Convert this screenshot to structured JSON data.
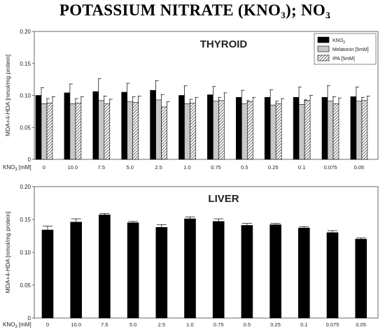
{
  "page_title": {
    "prefix": "POTASSIUM NITRATE (KNO",
    "sub1": "3",
    "mid": "); NO",
    "sup": "−",
    "sub2": "3"
  },
  "chart_data": [
    {
      "type": "bar",
      "title": "THYROID",
      "ylabel": "MDA+4-HDA [nmol/mg protein]",
      "xlabel_prefix": "KNO",
      "xlabel_sub": "3",
      "xlabel_suffix": " [mM]",
      "ylim": [
        0,
        0.2
      ],
      "yticks": [
        "0",
        "0.05",
        "0.10",
        "0.15",
        "0.20"
      ],
      "grid": false,
      "legend_position": "top-right",
      "categories": [
        "0",
        "10.0",
        "7.5",
        "5.0",
        "2.5",
        "1.0",
        "0.75",
        "0.5",
        "0.25",
        "0.1",
        "0.075",
        "0.05"
      ],
      "series": [
        {
          "name": "KNO",
          "name_sub": "3",
          "fill": "solid-black",
          "values": [
            0.1,
            0.104,
            0.106,
            0.105,
            0.108,
            0.1,
            0.101,
            0.097,
            0.097,
            0.097,
            0.097,
            0.098
          ],
          "errors": [
            0.012,
            0.014,
            0.02,
            0.014,
            0.015,
            0.015,
            0.013,
            0.011,
            0.012,
            0.016,
            0.018,
            0.015
          ]
        },
        {
          "name": "Melatonin [5mM]",
          "fill": "light-gray",
          "values": [
            0.087,
            0.087,
            0.092,
            0.09,
            0.093,
            0.087,
            0.091,
            0.087,
            0.085,
            0.086,
            0.091,
            0.091
          ],
          "errors": [
            0.008,
            0.008,
            0.007,
            0.008,
            0.008,
            0.007,
            0.006,
            0.005,
            0.006,
            0.007,
            0.007,
            0.006
          ]
        },
        {
          "name": "IPA [5mM]",
          "fill": "hatched",
          "values": [
            0.088,
            0.088,
            0.087,
            0.089,
            0.082,
            0.088,
            0.092,
            0.09,
            0.087,
            0.092,
            0.087,
            0.092
          ],
          "errors": [
            0.01,
            0.01,
            0.007,
            0.01,
            0.008,
            0.009,
            0.012,
            0.007,
            0.008,
            0.008,
            0.009,
            0.007
          ]
        }
      ]
    },
    {
      "type": "bar",
      "title": "LIVER",
      "ylabel": "MDA+4-HDA [nmol/mg protein]",
      "xlabel_prefix": "KNO",
      "xlabel_sub": "3",
      "xlabel_suffix": " [mM]",
      "ylim": [
        0,
        0.2
      ],
      "yticks": [
        "0",
        "0.05",
        "0.10",
        "0.15",
        "0.20"
      ],
      "grid": false,
      "categories": [
        "0",
        "10.0",
        "7.5",
        "5.0",
        "2.5",
        "1.0",
        "0.75",
        "0.5",
        "0.25",
        "0.1",
        "0.075",
        "0.05"
      ],
      "series": [
        {
          "name": "KNO3",
          "fill": "solid-black",
          "values": [
            0.134,
            0.146,
            0.157,
            0.145,
            0.138,
            0.151,
            0.147,
            0.141,
            0.142,
            0.137,
            0.13,
            0.12
          ],
          "errors": [
            0.006,
            0.005,
            0.002,
            0.002,
            0.004,
            0.003,
            0.004,
            0.003,
            0.002,
            0.002,
            0.003,
            0.002
          ]
        }
      ]
    }
  ]
}
